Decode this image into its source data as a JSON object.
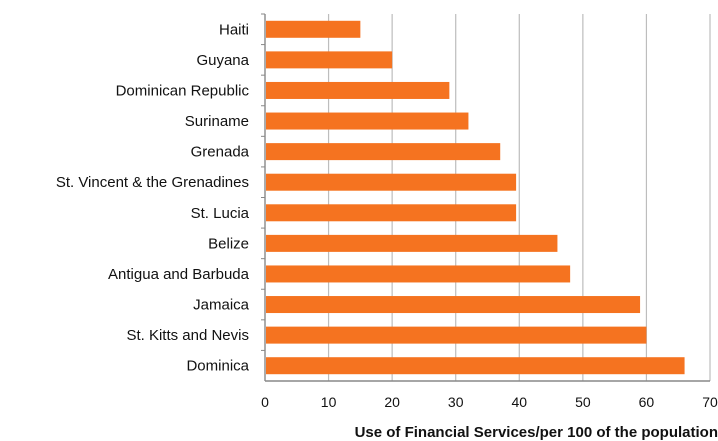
{
  "chart_data": {
    "type": "bar",
    "orientation": "horizontal",
    "categories": [
      "Haiti",
      "Guyana",
      "Dominican Republic",
      "Suriname",
      "Grenada",
      "St. Vincent & the Grenadines",
      "St. Lucia",
      "Belize",
      "Antigua and Barbuda",
      "Jamaica",
      "St. Kitts and Nevis",
      "Dominica"
    ],
    "values": [
      15,
      20,
      29,
      32,
      37,
      39.5,
      39.5,
      46,
      48,
      59,
      60,
      66
    ],
    "xlabel": "Use of Financial Services/per 100 of the population",
    "ylabel": "",
    "xlim": [
      0,
      70
    ],
    "xticks": [
      0,
      10,
      20,
      30,
      40,
      50,
      60,
      70
    ],
    "grid": "vertical gridlines",
    "legend": "none",
    "colors": {
      "bar": "#f57320",
      "grid": "#bdbdbd",
      "axis": "#888888"
    }
  }
}
